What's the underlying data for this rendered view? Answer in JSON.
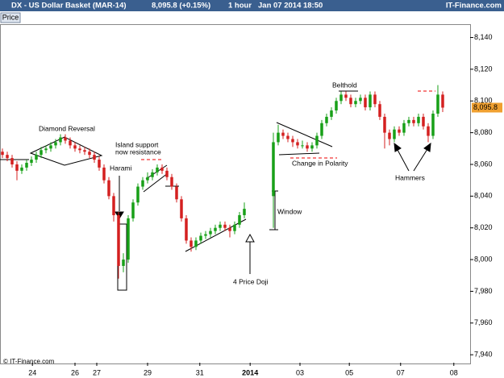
{
  "header": {
    "symbol": "DX - US Dollar Basket (MAR-14)",
    "quote": "8,095.8 (+0.15%)",
    "interval": "1 hour",
    "datetime": "Jan 07 2014 18:50",
    "site": "IT-Finance.com",
    "tab": "Price"
  },
  "footer": "© IT-Finance.com",
  "chart_data": {
    "type": "candlestick",
    "up_color": "#18a018",
    "down_color": "#d42020",
    "open": [
      8068,
      8066,
      8064,
      8060,
      8056,
      8058,
      8061,
      8063,
      8066,
      8069,
      8070,
      8072,
      8074,
      8077,
      8075,
      8072,
      8070,
      8069,
      8068,
      8066,
      8063,
      8058,
      8050,
      8040,
      8028,
      7996,
      8000,
      8026,
      8036,
      8046,
      8050,
      8052,
      8055,
      8058,
      8056,
      8052,
      8046,
      8038,
      8026,
      8012,
      8008,
      8012,
      8015,
      8016,
      8018,
      8020,
      8022,
      8020,
      8018,
      8022,
      8028,
      null,
      null,
      null,
      null,
      null,
      8040,
      8074,
      8080,
      8078,
      8076,
      8074,
      8072,
      8072,
      8070,
      8072,
      8078,
      8086,
      8090,
      8094,
      8100,
      8104,
      8102,
      8098,
      8100,
      8102,
      8096,
      8104,
      8098,
      8090,
      8080,
      8076,
      8082,
      8080,
      8086,
      8088,
      8086,
      8090,
      8084,
      8078,
      8092,
      8104
    ],
    "high": [
      8070,
      8068,
      8066,
      8062,
      8060,
      8063,
      8065,
      8068,
      8071,
      8072,
      8074,
      8076,
      8079,
      8079,
      8077,
      8074,
      8072,
      8071,
      8070,
      8068,
      8065,
      8060,
      8052,
      8042,
      8030,
      8004,
      8028,
      8038,
      8048,
      8052,
      8055,
      8057,
      8060,
      8060,
      8058,
      8054,
      8048,
      8040,
      8028,
      8014,
      8014,
      8017,
      8018,
      8020,
      8022,
      8024,
      8024,
      8022,
      8024,
      8030,
      8036,
      null,
      null,
      null,
      null,
      null,
      8080,
      8085,
      8082,
      8080,
      8078,
      8076,
      8075,
      8074,
      8074,
      8080,
      8088,
      8092,
      8096,
      8102,
      8106,
      8106,
      8104,
      8102,
      8104,
      8104,
      8106,
      8106,
      8100,
      8092,
      8082,
      8084,
      8084,
      8088,
      8090,
      8090,
      8092,
      8092,
      8086,
      8094,
      8110,
      8106
    ],
    "low": [
      8064,
      8062,
      8058,
      8050,
      8054,
      8056,
      8059,
      8061,
      8064,
      8067,
      8068,
      8070,
      8072,
      8073,
      8070,
      8068,
      8067,
      8066,
      8064,
      8061,
      8056,
      8048,
      8038,
      8024,
      7988,
      7992,
      7998,
      8024,
      8034,
      8044,
      8048,
      8050,
      8053,
      8054,
      8050,
      8044,
      8036,
      8024,
      8010,
      8005,
      8006,
      8010,
      8013,
      8014,
      8016,
      8018,
      8018,
      8014,
      8016,
      8020,
      8026,
      null,
      null,
      null,
      null,
      null,
      8020,
      8072,
      8076,
      8074,
      8071,
      8070,
      8070,
      8068,
      8068,
      8070,
      8076,
      8084,
      8088,
      8092,
      8098,
      8100,
      8096,
      8096,
      8098,
      8094,
      8094,
      8096,
      8088,
      8070,
      8072,
      8074,
      8078,
      8078,
      8084,
      8084,
      8084,
      8082,
      8074,
      8076,
      8090,
      8093
    ],
    "close": [
      8066,
      8064,
      8060,
      8056,
      8058,
      8061,
      8063,
      8066,
      8069,
      8070,
      8072,
      8074,
      8077,
      8075,
      8072,
      8070,
      8069,
      8068,
      8066,
      8063,
      8058,
      8050,
      8040,
      8028,
      7996,
      8000,
      8026,
      8036,
      8046,
      8050,
      8052,
      8055,
      8058,
      8056,
      8052,
      8046,
      8038,
      8026,
      8012,
      8008,
      8012,
      8015,
      8016,
      8018,
      8020,
      8022,
      8020,
      8018,
      8022,
      8028,
      8032,
      null,
      null,
      null,
      null,
      null,
      8074,
      8080,
      8078,
      8076,
      8074,
      8072,
      8072,
      8070,
      8072,
      8078,
      8086,
      8090,
      8094,
      8100,
      8104,
      8102,
      8098,
      8100,
      8102,
      8096,
      8104,
      8098,
      8090,
      8080,
      8076,
      8082,
      8080,
      8086,
      8088,
      8086,
      8090,
      8084,
      8078,
      8092,
      8104,
      8095.8
    ],
    "last_price_label": "8,095.8",
    "xlim": [
      -0.5,
      96.67
    ],
    "ylim": [
      7935,
      8148.4
    ],
    "xticks": [
      {
        "value": 6.2,
        "label": "24"
      },
      {
        "value": 15,
        "label": "26"
      },
      {
        "value": 19.5,
        "label": "27"
      },
      {
        "value": 30,
        "label": "29"
      },
      {
        "value": 40.8,
        "label": "31"
      },
      {
        "value": 51.2,
        "label": "2014"
      },
      {
        "value": 61.5,
        "label": "03"
      },
      {
        "value": 71.7,
        "label": "05"
      },
      {
        "value": 82.3,
        "label": "07"
      },
      {
        "value": 93.3,
        "label": "08"
      }
    ],
    "yticks": [
      {
        "value": 7940,
        "label": "7,940"
      },
      {
        "value": 7960,
        "label": "7,960"
      },
      {
        "value": 7980,
        "label": "7,980"
      },
      {
        "value": 8000,
        "label": "8,000"
      },
      {
        "value": 8020,
        "label": "8,020"
      },
      {
        "value": 8040,
        "label": "8,040"
      },
      {
        "value": 8060,
        "label": "8,060"
      },
      {
        "value": 8080,
        "label": "8,080"
      },
      {
        "value": 8100,
        "label": "8,100"
      },
      {
        "value": 8120,
        "label": "8,120"
      },
      {
        "value": 8140,
        "label": "8,140"
      }
    ],
    "annotations": [
      "Diamond Reversal",
      "Island support",
      "now resistance",
      "Harami",
      "4 Price Doji",
      "Window",
      "Change in Polarity",
      "Belthold",
      "Hammers"
    ]
  }
}
